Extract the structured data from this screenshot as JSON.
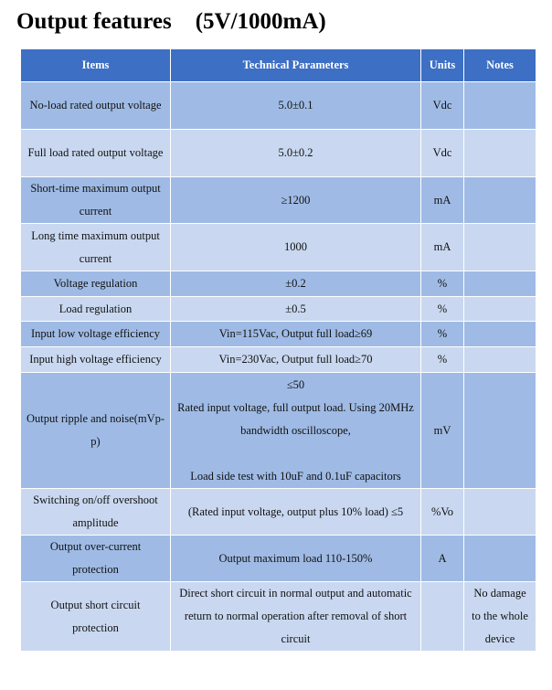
{
  "header": {
    "title": "Output features",
    "subtitle": "(5V/1000mA)"
  },
  "table": {
    "columns": [
      "Items",
      "Technical Parameters",
      "Units",
      "Notes"
    ],
    "rows": [
      {
        "item": "No-load rated output voltage",
        "parameter": "5.0±0.1",
        "unit": "Vdc"
      },
      {
        "item": "Full load rated output voltage",
        "parameter": "5.0±0.2",
        "unit": "Vdc"
      },
      {
        "item": "Short-time maximum output current",
        "parameter": "≥1200",
        "unit": "mA"
      },
      {
        "item": "Long time maximum output current",
        "parameter": "1000",
        "unit": "mA"
      },
      {
        "item": "Voltage regulation",
        "parameter": "±0.2",
        "unit": "%"
      },
      {
        "item": "Load regulation",
        "parameter": "±0.5",
        "unit": "%"
      },
      {
        "item": "Input low voltage efficiency",
        "parameter": "Vin=115Vac,   Output full load≥69",
        "unit": "%"
      },
      {
        "item": "Input high voltage efficiency",
        "parameter": "Vin=230Vac,   Output full load≥70",
        "unit": "%"
      },
      {
        "item": "Output ripple and noise(mVp-p)",
        "parameter": [
          "≤50",
          "Rated input voltage, full output load. Using 20MHz bandwidth oscilloscope,",
          "Load side test with 10uF and 0.1uF capacitors"
        ],
        "unit": "mV"
      },
      {
        "item": "Switching on/off overshoot amplitude",
        "parameter": "(Rated input voltage, output plus 10% load)    ≤5",
        "unit": "%Vo"
      },
      {
        "item": "Output over-current protection",
        "parameter": "Output maximum load 110-150%",
        "unit": "A"
      },
      {
        "item": "Output short circuit protection",
        "parameter": "Direct short circuit in normal output and automatic return to normal operation after removal of short circuit",
        "note": "No damage to the whole device"
      }
    ]
  }
}
